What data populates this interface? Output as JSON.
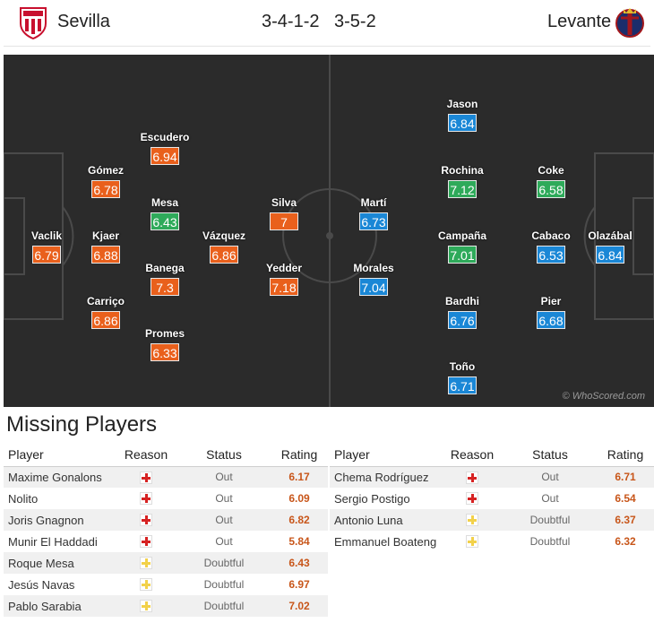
{
  "header": {
    "home_team": "Sevilla",
    "home_formation": "3-4-1-2",
    "away_formation": "3-5-2",
    "away_team": "Levante"
  },
  "pitch": {
    "watermark": "© WhoScored.com",
    "home_players": [
      {
        "name": "Vaclik",
        "rating": "6.79",
        "color": "orange"
      },
      {
        "name": "Gómez",
        "rating": "6.78",
        "color": "orange"
      },
      {
        "name": "Kjaer",
        "rating": "6.88",
        "color": "orange"
      },
      {
        "name": "Carriço",
        "rating": "6.86",
        "color": "orange"
      },
      {
        "name": "Escudero",
        "rating": "6.94",
        "color": "orange"
      },
      {
        "name": "Mesa",
        "rating": "6.43",
        "color": "green"
      },
      {
        "name": "Banega",
        "rating": "7.3",
        "color": "orange"
      },
      {
        "name": "Promes",
        "rating": "6.33",
        "color": "orange"
      },
      {
        "name": "Vázquez",
        "rating": "6.86",
        "color": "orange"
      },
      {
        "name": "Silva",
        "rating": "7",
        "color": "orange"
      },
      {
        "name": "Yedder",
        "rating": "7.18",
        "color": "orange"
      }
    ],
    "away_players": [
      {
        "name": "Martí",
        "rating": "6.73",
        "color": "blue"
      },
      {
        "name": "Morales",
        "rating": "7.04",
        "color": "blue"
      },
      {
        "name": "Jason",
        "rating": "6.84",
        "color": "blue"
      },
      {
        "name": "Rochina",
        "rating": "7.12",
        "color": "green"
      },
      {
        "name": "Campaña",
        "rating": "7.01",
        "color": "green"
      },
      {
        "name": "Bardhi",
        "rating": "6.76",
        "color": "blue"
      },
      {
        "name": "Toño",
        "rating": "6.71",
        "color": "blue"
      },
      {
        "name": "Coke",
        "rating": "6.58",
        "color": "green"
      },
      {
        "name": "Cabaco",
        "rating": "6.53",
        "color": "blue"
      },
      {
        "name": "Pier",
        "rating": "6.68",
        "color": "blue"
      },
      {
        "name": "Olazábal",
        "rating": "6.84",
        "color": "blue"
      }
    ]
  },
  "missing": {
    "title": "Missing Players",
    "headers": {
      "player": "Player",
      "reason": "Reason",
      "status": "Status",
      "rating": "Rating"
    },
    "home": [
      {
        "player": "Maxime Gonalons",
        "reason": "injury",
        "status": "Out",
        "rating": "6.17"
      },
      {
        "player": "Nolito",
        "reason": "injury",
        "status": "Out",
        "rating": "6.09"
      },
      {
        "player": "Joris Gnagnon",
        "reason": "injury",
        "status": "Out",
        "rating": "6.82"
      },
      {
        "player": "Munir El Haddadi",
        "reason": "injury",
        "status": "Out",
        "rating": "5.84"
      },
      {
        "player": "Roque Mesa",
        "reason": "doubtful",
        "status": "Doubtful",
        "rating": "6.43"
      },
      {
        "player": "Jesús Navas",
        "reason": "doubtful",
        "status": "Doubtful",
        "rating": "6.97"
      },
      {
        "player": "Pablo Sarabia",
        "reason": "doubtful",
        "status": "Doubtful",
        "rating": "7.02"
      }
    ],
    "away": [
      {
        "player": "Chema Rodríguez",
        "reason": "injury",
        "status": "Out",
        "rating": "6.71"
      },
      {
        "player": "Sergio Postigo",
        "reason": "injury",
        "status": "Out",
        "rating": "6.54"
      },
      {
        "player": "Antonio Luna",
        "reason": "doubtful",
        "status": "Doubtful",
        "rating": "6.37"
      },
      {
        "player": "Emmanuel Boateng",
        "reason": "doubtful",
        "status": "Doubtful",
        "rating": "6.32"
      }
    ]
  }
}
